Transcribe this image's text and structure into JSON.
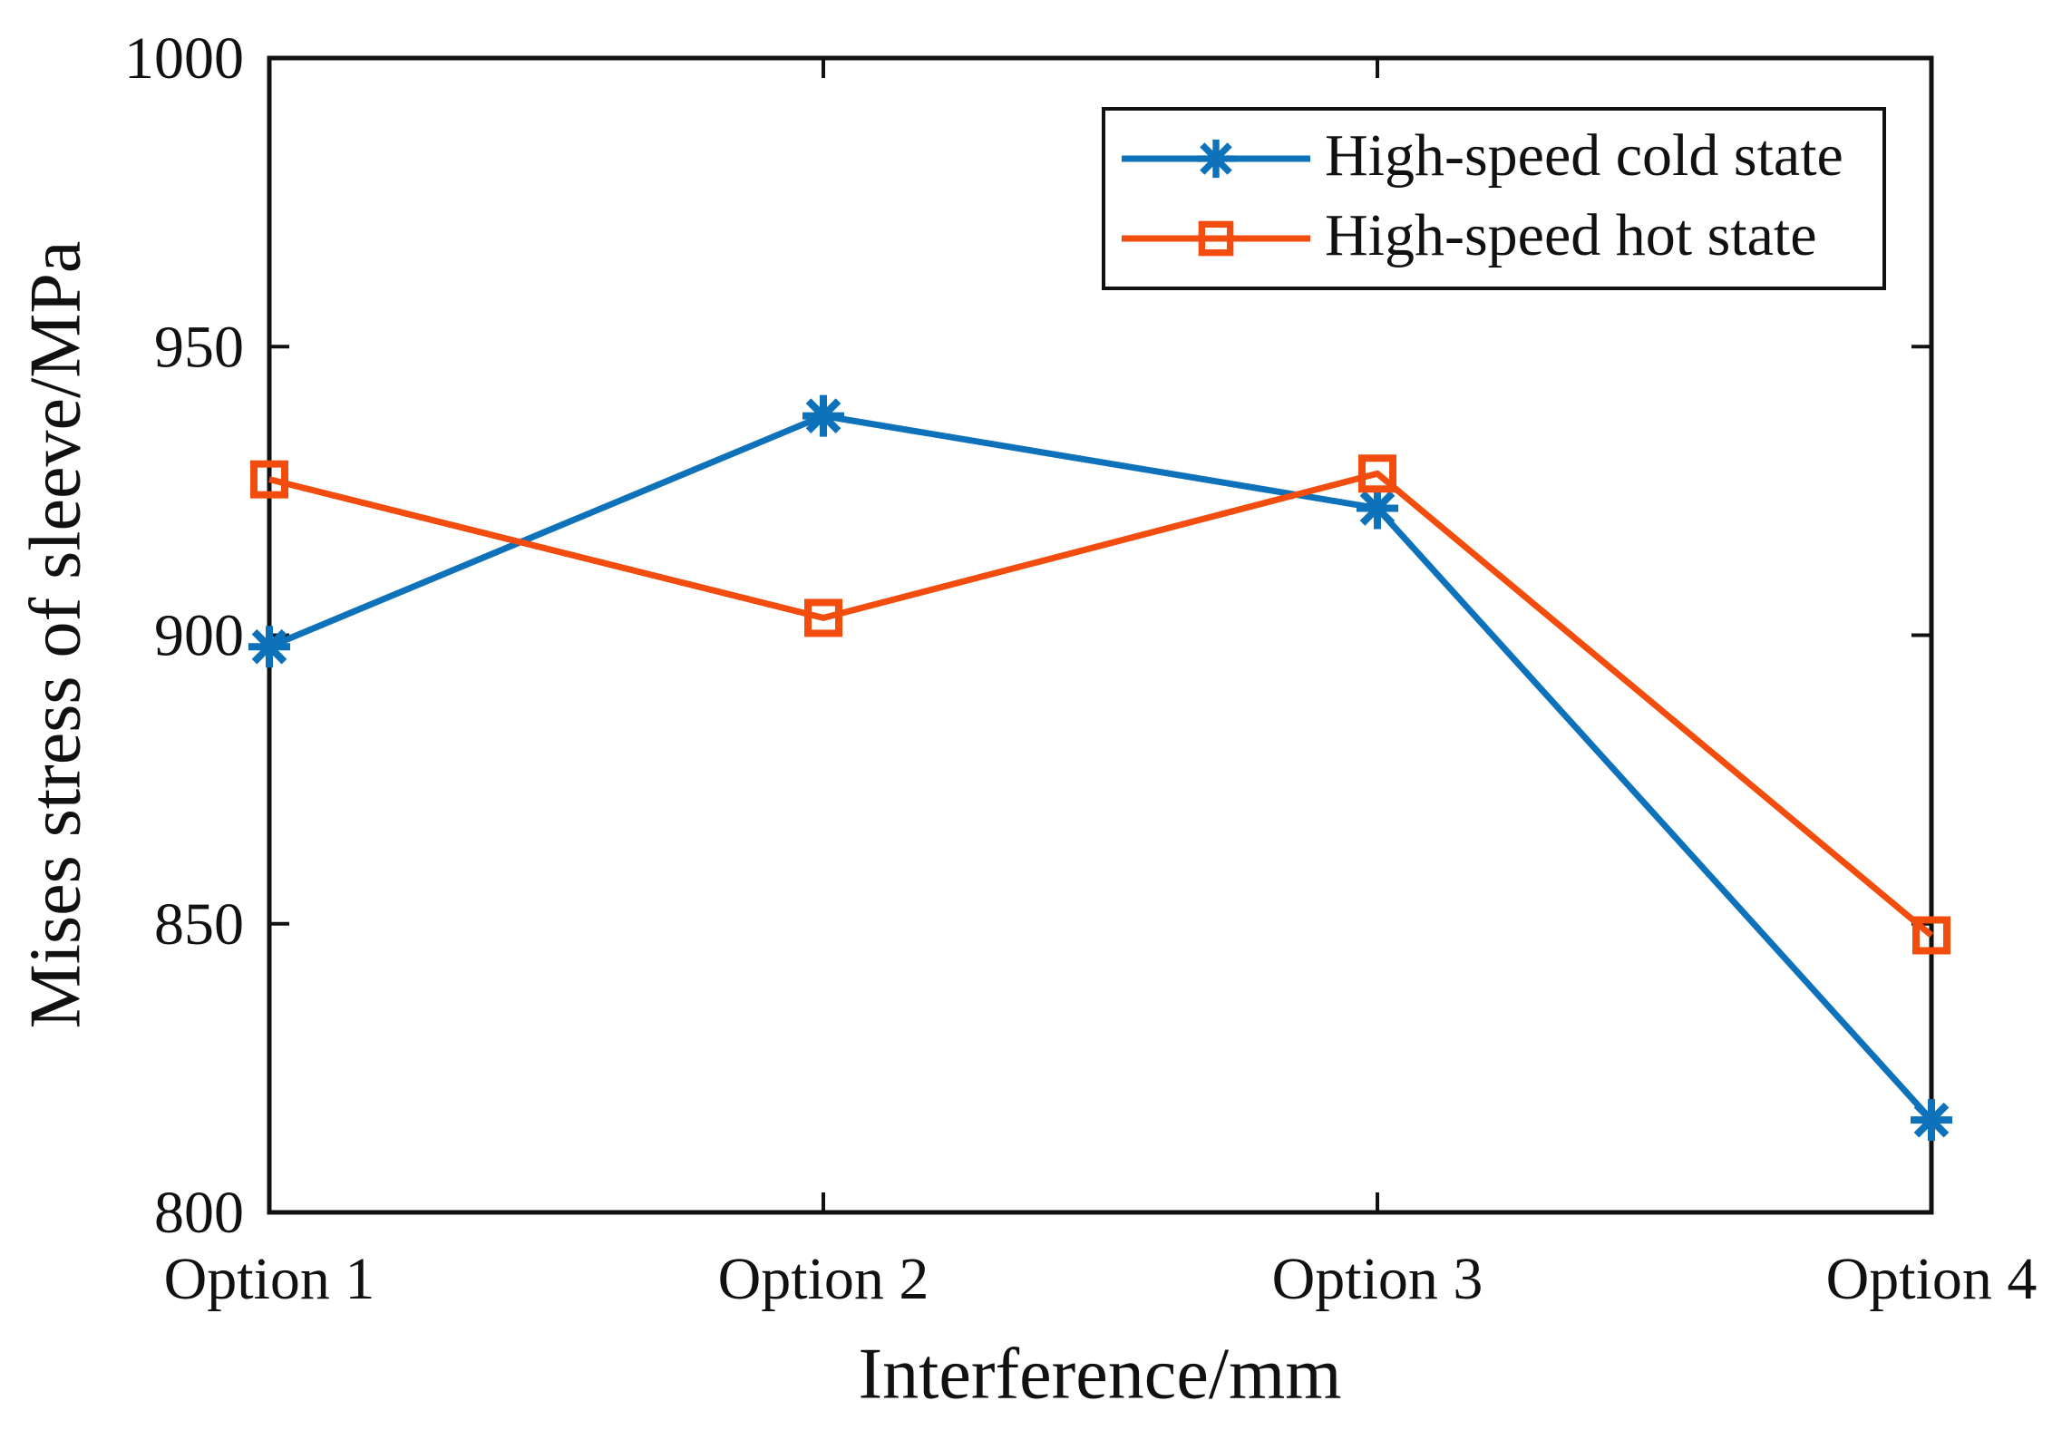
{
  "chart_data": {
    "type": "line",
    "categories": [
      "Option 1",
      "Option 2",
      "Option 3",
      "Option 4"
    ],
    "series": [
      {
        "name": "High-speed cold state",
        "marker": "asterisk",
        "color": "#0D72BA",
        "values": [
          898,
          938,
          922,
          816
        ]
      },
      {
        "name": "High-speed hot state",
        "marker": "square",
        "color": "#F24D0F",
        "values": [
          927,
          903,
          928,
          848
        ]
      }
    ],
    "title": "",
    "xlabel": "Interference/mm",
    "ylabel": "Mises stress of sleeve/MPa",
    "ylim": [
      800,
      1000
    ],
    "yticks": [
      800,
      850,
      900,
      950,
      1000
    ],
    "grid": "off",
    "legend_position": "top-right"
  },
  "colors": {
    "axis": "#111111",
    "background": "#ffffff",
    "cold_series": "#0D72BA",
    "hot_series": "#F24D0F"
  }
}
